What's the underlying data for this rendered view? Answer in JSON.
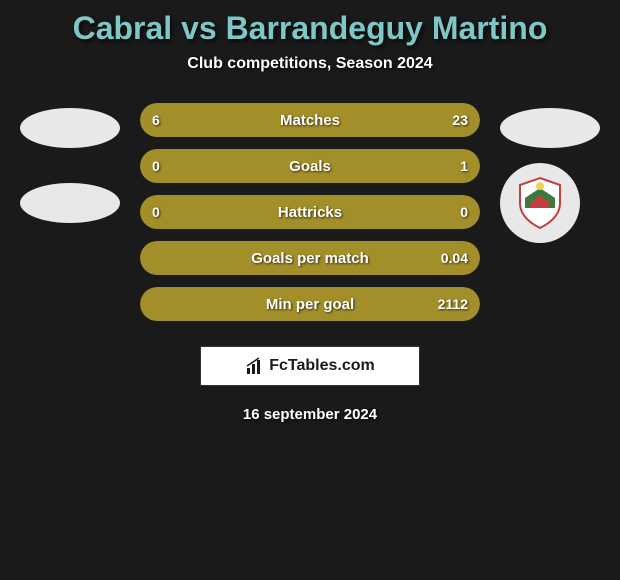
{
  "title": "Cabral vs Barrandeguy Martino",
  "subtitle": "Club competitions, Season 2024",
  "colors": {
    "title_color": "#7fc6c6",
    "text_color": "#ffffff",
    "background": "#1a1a1a",
    "bar_primary": "#a38f2a",
    "bar_dark": "#4a4a2a",
    "badge_bg": "#e8e8e8"
  },
  "stats": [
    {
      "label": "Matches",
      "left_value": "6",
      "right_value": "23",
      "left_pct": 20,
      "right_pct": 80,
      "left_color": "#a38f2a",
      "right_color": "#a38f2a"
    },
    {
      "label": "Goals",
      "left_value": "0",
      "right_value": "1",
      "left_pct": 15,
      "right_pct": 85,
      "left_color": "#a38f2a",
      "right_color": "#a38f2a"
    },
    {
      "label": "Hattricks",
      "left_value": "0",
      "right_value": "0",
      "left_pct": 50,
      "right_pct": 50,
      "left_color": "#a38f2a",
      "right_color": "#a38f2a"
    },
    {
      "label": "Goals per match",
      "left_value": "",
      "right_value": "0.04",
      "left_pct": 0,
      "right_pct": 100,
      "left_color": "#a38f2a",
      "right_color": "#a38f2a"
    },
    {
      "label": "Min per goal",
      "left_value": "",
      "right_value": "2112",
      "left_pct": 0,
      "right_pct": 100,
      "left_color": "#a38f2a",
      "right_color": "#a38f2a"
    }
  ],
  "footer": {
    "brand": "FcTables.com"
  },
  "date": "16 september 2024"
}
